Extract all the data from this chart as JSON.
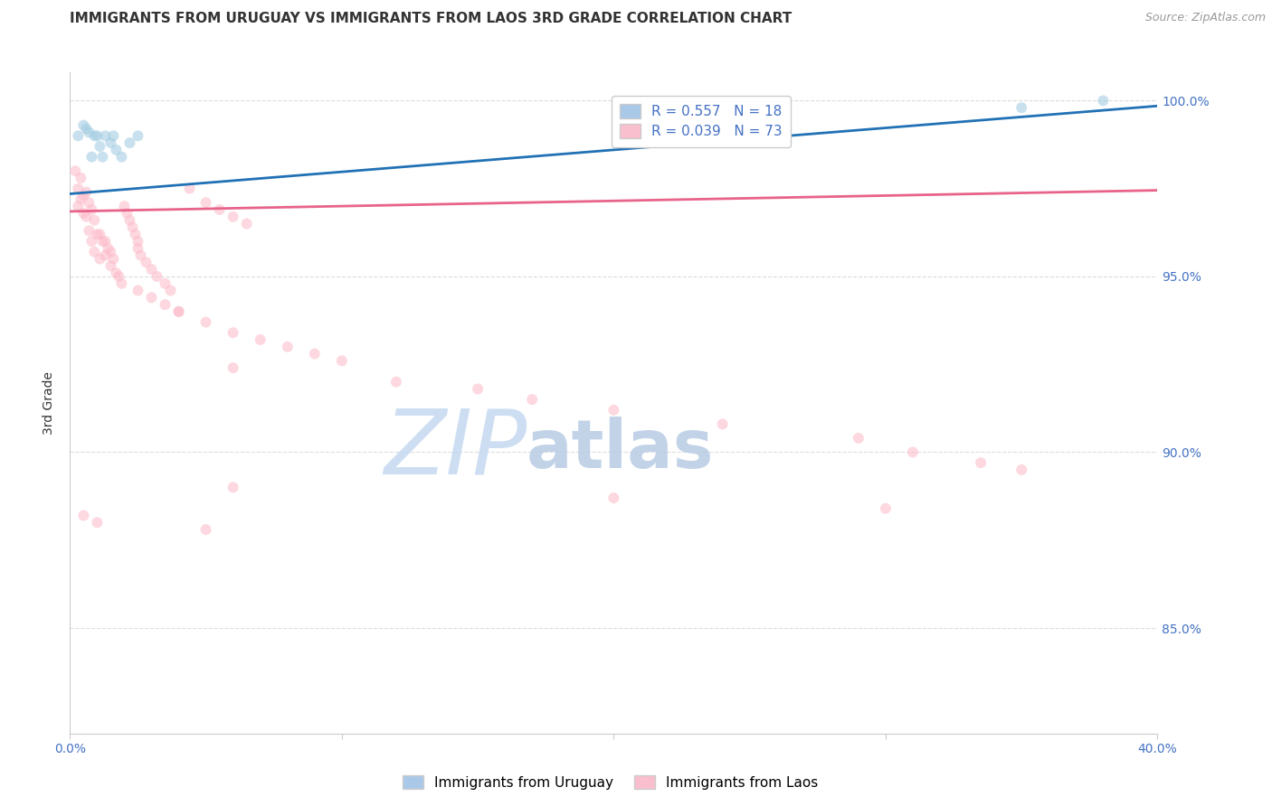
{
  "title": "IMMIGRANTS FROM URUGUAY VS IMMIGRANTS FROM LAOS 3RD GRADE CORRELATION CHART",
  "source": "Source: ZipAtlas.com",
  "ylabel": "3rd Grade",
  "xlim": [
    0.0,
    0.4
  ],
  "ylim": [
    0.82,
    1.008
  ],
  "yticks": [
    0.85,
    0.9,
    0.95,
    1.0
  ],
  "ytick_labels": [
    "85.0%",
    "90.0%",
    "95.0%",
    "100.0%"
  ],
  "xticks": [
    0.0,
    0.1,
    0.2,
    0.3,
    0.4
  ],
  "xtick_labels": [
    "0.0%",
    "",
    "",
    "",
    "40.0%"
  ],
  "legend_line1": "R = 0.557   N = 18",
  "legend_line2": "R = 0.039   N = 73",
  "legend_bottom_1": "Immigrants from Uruguay",
  "legend_bottom_2": "Immigrants from Laos",
  "uruguay_color": "#9ecae1",
  "laos_color": "#fcb9c8",
  "uruguay_line_color": "#2171b5",
  "laos_line_color": "#e8638a",
  "background_color": "#ffffff",
  "grid_color": "#dcdcdc",
  "title_fontsize": 11,
  "source_fontsize": 9,
  "tick_label_color": "#4472c4",
  "marker_size": 75,
  "marker_alpha": 0.55,
  "watermark_zip": "ZIP",
  "watermark_atlas": "atlas",
  "watermark_color_zip": "#c5d8f0",
  "watermark_color_atlas": "#b8cce4",
  "watermark_fontsize": 72,
  "uruguay_x": [
    0.003,
    0.005,
    0.006,
    0.007,
    0.008,
    0.009,
    0.01,
    0.011,
    0.012,
    0.013,
    0.015,
    0.016,
    0.017,
    0.019,
    0.022,
    0.025,
    0.35,
    0.38
  ],
  "uruguay_y": [
    0.99,
    0.993,
    0.992,
    0.991,
    0.984,
    0.99,
    0.99,
    0.987,
    0.984,
    0.99,
    0.988,
    0.99,
    0.986,
    0.984,
    0.988,
    0.99,
    0.998,
    1.0
  ],
  "laos_x": [
    0.002,
    0.003,
    0.003,
    0.004,
    0.004,
    0.005,
    0.005,
    0.006,
    0.006,
    0.007,
    0.007,
    0.008,
    0.008,
    0.009,
    0.009,
    0.01,
    0.011,
    0.011,
    0.012,
    0.013,
    0.013,
    0.014,
    0.015,
    0.015,
    0.016,
    0.017,
    0.018,
    0.019,
    0.02,
    0.021,
    0.022,
    0.023,
    0.024,
    0.025,
    0.025,
    0.026,
    0.028,
    0.03,
    0.032,
    0.035,
    0.037,
    0.04,
    0.044,
    0.05,
    0.055,
    0.06,
    0.065,
    0.025,
    0.03,
    0.035,
    0.04,
    0.05,
    0.06,
    0.07,
    0.08,
    0.09,
    0.1,
    0.06,
    0.12,
    0.15,
    0.17,
    0.2,
    0.24,
    0.29,
    0.31,
    0.335,
    0.35,
    0.06,
    0.2,
    0.3,
    0.005,
    0.01,
    0.05
  ],
  "laos_y": [
    0.98,
    0.975,
    0.97,
    0.978,
    0.972,
    0.968,
    0.973,
    0.974,
    0.967,
    0.971,
    0.963,
    0.969,
    0.96,
    0.966,
    0.957,
    0.962,
    0.962,
    0.955,
    0.96,
    0.96,
    0.956,
    0.958,
    0.957,
    0.953,
    0.955,
    0.951,
    0.95,
    0.948,
    0.97,
    0.968,
    0.966,
    0.964,
    0.962,
    0.96,
    0.958,
    0.956,
    0.954,
    0.952,
    0.95,
    0.948,
    0.946,
    0.94,
    0.975,
    0.971,
    0.969,
    0.967,
    0.965,
    0.946,
    0.944,
    0.942,
    0.94,
    0.937,
    0.934,
    0.932,
    0.93,
    0.928,
    0.926,
    0.924,
    0.92,
    0.918,
    0.915,
    0.912,
    0.908,
    0.904,
    0.9,
    0.897,
    0.895,
    0.89,
    0.887,
    0.884,
    0.882,
    0.88,
    0.878
  ],
  "uru_line_x0": 0.0,
  "uru_line_y0": 0.9735,
  "uru_line_x1": 0.4,
  "uru_line_y1": 0.9985,
  "laos_line_x0": 0.0,
  "laos_line_y0": 0.9685,
  "laos_line_x1": 0.4,
  "laos_line_y1": 0.9745
}
